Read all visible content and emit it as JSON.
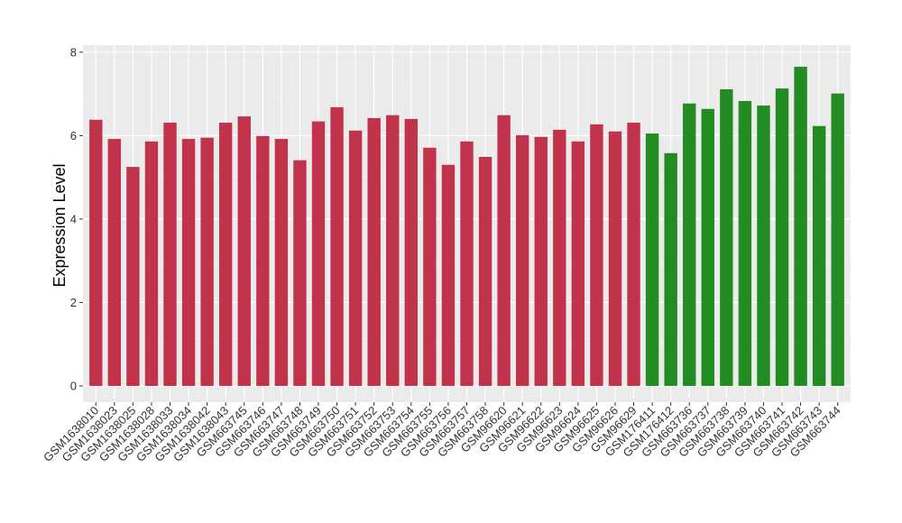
{
  "chart_data": {
    "type": "bar",
    "y_label": "Expression Level",
    "categories": [
      "GSM1638010",
      "GSM1638023",
      "GSM1638025",
      "GSM1638028",
      "GSM1638033",
      "GSM1638034",
      "GSM1638042",
      "GSM1638043",
      "GSM663745",
      "GSM663746",
      "GSM663747",
      "GSM663748",
      "GSM663749",
      "GSM663750",
      "GSM663751",
      "GSM663752",
      "GSM663753",
      "GSM663754",
      "GSM663755",
      "GSM663756",
      "GSM663757",
      "GSM663758",
      "GSM96620",
      "GSM96621",
      "GSM96622",
      "GSM96623",
      "GSM96624",
      "GSM96625",
      "GSM96626",
      "GSM96629",
      "GSM176411",
      "GSM176412",
      "GSM663736",
      "GSM663737",
      "GSM663738",
      "GSM663739",
      "GSM663740",
      "GSM663741",
      "GSM663742",
      "GSM663743",
      "GSM663744"
    ],
    "values": [
      6.38,
      5.92,
      5.25,
      5.86,
      6.31,
      5.92,
      5.95,
      6.31,
      6.46,
      5.99,
      5.92,
      5.41,
      6.34,
      6.68,
      6.12,
      6.42,
      6.49,
      6.4,
      5.71,
      5.3,
      5.86,
      5.49,
      6.49,
      6.01,
      5.97,
      6.14,
      5.86,
      6.27,
      6.1,
      6.31,
      6.05,
      5.58,
      6.77,
      6.64,
      7.11,
      6.83,
      6.72,
      7.13,
      7.65,
      6.23,
      7.01
    ],
    "colors": [
      "#c0334b",
      "#c0334b",
      "#c0334b",
      "#c0334b",
      "#c0334b",
      "#c0334b",
      "#c0334b",
      "#c0334b",
      "#c0334b",
      "#c0334b",
      "#c0334b",
      "#c0334b",
      "#c0334b",
      "#c0334b",
      "#c0334b",
      "#c0334b",
      "#c0334b",
      "#c0334b",
      "#c0334b",
      "#c0334b",
      "#c0334b",
      "#c0334b",
      "#c0334b",
      "#c0334b",
      "#c0334b",
      "#c0334b",
      "#c0334b",
      "#c0334b",
      "#c0334b",
      "#c0334b",
      "#228b22",
      "#228b22",
      "#228b22",
      "#228b22",
      "#228b22",
      "#228b22",
      "#228b22",
      "#228b22",
      "#228b22",
      "#228b22",
      "#228b22"
    ],
    "ylim": [
      -0.39,
      8.17
    ],
    "yticks": [
      0,
      2,
      4,
      6,
      8
    ],
    "grid": true
  }
}
